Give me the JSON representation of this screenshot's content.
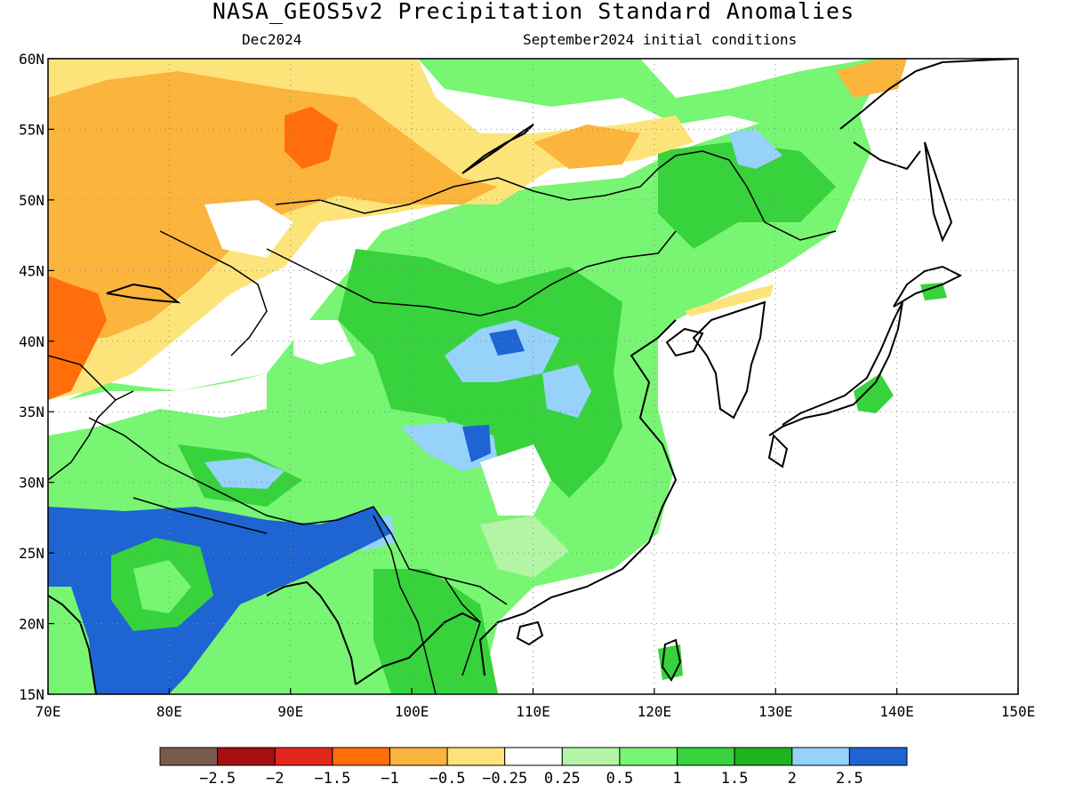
{
  "title": "NASA_GEOS5v2 Precipitation Standard Anomalies",
  "forecast_month": "Dec2024",
  "initial_conditions": "September2024 initial conditions",
  "map": {
    "lon_range": [
      70,
      150
    ],
    "lat_range": [
      15,
      60
    ],
    "lon_ticks": [
      "70E",
      "80E",
      "90E",
      "100E",
      "110E",
      "120E",
      "130E",
      "140E",
      "150E"
    ],
    "lat_ticks": [
      "15N",
      "20N",
      "25N",
      "30N",
      "35N",
      "40N",
      "45N",
      "50N",
      "55N",
      "60N"
    ],
    "gridlines": "dotted"
  },
  "colorbar": {
    "labels": [
      "-2.5",
      "-2",
      "-1.5",
      "-1",
      "-0.5",
      "-0.25",
      "0.25",
      "0.5",
      "1",
      "1.5",
      "2",
      "2.5"
    ],
    "colors": [
      "#7b5a4e",
      "#a50f0f",
      "#e3261c",
      "#ff6e0a",
      "#fbb43c",
      "#fce47a",
      "#ffffff",
      "#b4f5a5",
      "#78f573",
      "#37d23c",
      "#1eb41e",
      "#96d2fa",
      "#1e64d2"
    ]
  },
  "anomaly_regions": [
    {
      "name": "north-india-blue",
      "class": 2.5
    },
    {
      "name": "india-green",
      "class": 1.5
    },
    {
      "name": "china-green",
      "class": 1
    },
    {
      "name": "kazakhstan-orange",
      "class": -1
    },
    {
      "name": "siberia-yellow",
      "class": -0.5
    },
    {
      "name": "mongolia-green",
      "class": 1
    },
    {
      "name": "east-china-white",
      "class": 0
    }
  ],
  "colors": {
    "coast": "#000000",
    "grid": "#888888",
    "background": "#ffffff"
  }
}
